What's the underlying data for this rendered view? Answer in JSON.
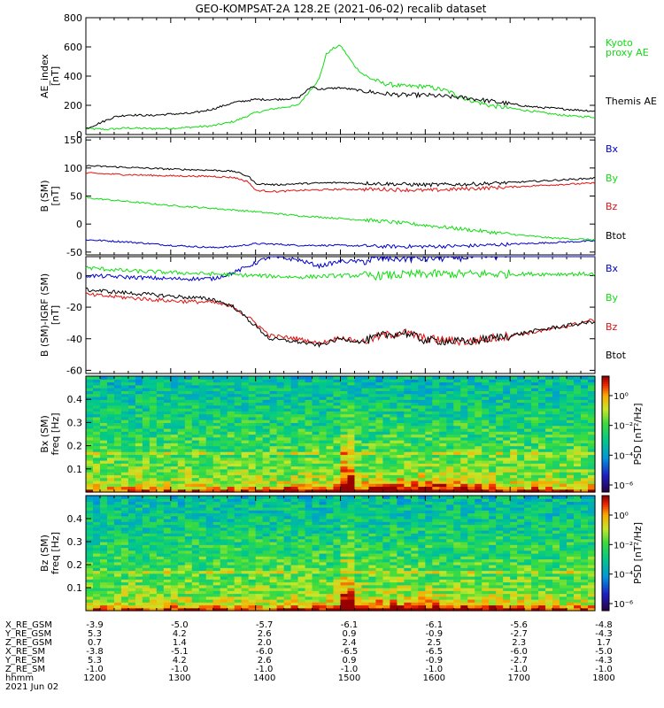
{
  "title": "GEO-KOMPSAT-2A 128.2E (2021-06-02) recalib dataset",
  "colors": {
    "black": "#000000",
    "red": "#e01010",
    "green": "#10dd10",
    "blue": "#0000cc",
    "kyoto": "#10dd10"
  },
  "chart_data": [
    {
      "type": "line",
      "panel": "ae",
      "ylabel": "AE_index [nT]",
      "ylim": [
        0,
        800
      ],
      "yticks": [
        "0",
        "200",
        "400",
        "600",
        "800"
      ],
      "x_range": [
        "1200",
        "1800"
      ],
      "series": [
        {
          "name": "Kyoto proxy AE",
          "color": "#10dd10",
          "x": [
            1200,
            1215,
            1230,
            1245,
            1300,
            1315,
            1330,
            1345,
            1400,
            1415,
            1430,
            1445,
            1450,
            1455,
            1500,
            1505,
            1510,
            1515,
            1520,
            1530,
            1545,
            1600,
            1615,
            1630,
            1645,
            1700,
            1715,
            1730,
            1745,
            1800
          ],
          "values": [
            40,
            35,
            45,
            40,
            42,
            50,
            60,
            90,
            150,
            180,
            200,
            380,
            550,
            590,
            610,
            540,
            470,
            420,
            390,
            350,
            330,
            330,
            300,
            240,
            200,
            180,
            160,
            140,
            125,
            120
          ]
        },
        {
          "name": "Themis AE",
          "color": "#000000",
          "x": [
            1200,
            1210,
            1220,
            1230,
            1245,
            1300,
            1315,
            1330,
            1345,
            1400,
            1415,
            1430,
            1440,
            1445,
            1500,
            1515,
            1530,
            1545,
            1600,
            1615,
            1630,
            1645,
            1700,
            1715,
            1730,
            1745,
            1800
          ],
          "values": [
            40,
            80,
            120,
            135,
            130,
            140,
            145,
            175,
            220,
            240,
            240,
            250,
            330,
            310,
            320,
            300,
            280,
            270,
            270,
            260,
            250,
            230,
            210,
            190,
            180,
            170,
            160
          ]
        }
      ]
    },
    {
      "type": "line",
      "panel": "bsm",
      "ylabel": "B (SM) [nT]",
      "ylim": [
        -55,
        155
      ],
      "yticks": [
        "-50",
        "0",
        "50",
        "100",
        "150"
      ],
      "series": [
        {
          "name": "Bx",
          "color": "#0000cc",
          "x": [
            1200,
            1230,
            1300,
            1330,
            1345,
            1400,
            1415,
            1430,
            1500,
            1530,
            1600,
            1630,
            1700,
            1730,
            1800
          ],
          "values": [
            -28,
            -32,
            -38,
            -42,
            -40,
            -35,
            -36,
            -38,
            -38,
            -40,
            -40,
            -39,
            -36,
            -33,
            -30
          ]
        },
        {
          "name": "By",
          "color": "#10dd10",
          "x": [
            1200,
            1230,
            1300,
            1330,
            1400,
            1430,
            1500,
            1530,
            1600,
            1630,
            1700,
            1730,
            1800
          ],
          "values": [
            47,
            40,
            33,
            28,
            22,
            15,
            10,
            5,
            -2,
            -10,
            -18,
            -25,
            -28
          ]
        },
        {
          "name": "Bz",
          "color": "#e01010",
          "x": [
            1200,
            1230,
            1300,
            1330,
            1345,
            1355,
            1400,
            1415,
            1430,
            1500,
            1530,
            1600,
            1630,
            1700,
            1730,
            1800
          ],
          "values": [
            91,
            88,
            86,
            85,
            83,
            75,
            60,
            58,
            60,
            62,
            62,
            60,
            63,
            66,
            70,
            73
          ]
        },
        {
          "name": "Btot",
          "color": "#000000",
          "x": [
            1200,
            1230,
            1300,
            1330,
            1345,
            1355,
            1400,
            1415,
            1430,
            1500,
            1530,
            1600,
            1630,
            1700,
            1730,
            1800
          ],
          "values": [
            104,
            101,
            98,
            96,
            94,
            85,
            72,
            70,
            72,
            74,
            72,
            70,
            71,
            74,
            78,
            82
          ]
        }
      ]
    },
    {
      "type": "line",
      "panel": "digrf",
      "ylabel": "B (SM)-IGRF (SM) [nT]",
      "ylim": [
        -62,
        12
      ],
      "yticks": [
        "-60",
        "-40",
        "-20",
        "0"
      ],
      "series": [
        {
          "name": "Bx",
          "color": "#0000cc",
          "x": [
            1200,
            1230,
            1300,
            1330,
            1345,
            1400,
            1410,
            1430,
            1445,
            1500,
            1515,
            1530,
            1600,
            1630,
            1700,
            1730,
            1800
          ],
          "values": [
            0,
            -1,
            -2,
            -2,
            2,
            8,
            12,
            10,
            6,
            9,
            9,
            11,
            11,
            12,
            13,
            14,
            14
          ]
        },
        {
          "name": "By",
          "color": "#10dd10",
          "x": [
            1200,
            1230,
            1300,
            1330,
            1400,
            1430,
            1500,
            1530,
            1600,
            1630,
            1700,
            1730,
            1800
          ],
          "values": [
            5,
            3,
            2,
            1,
            0,
            -1,
            0,
            0,
            1,
            1,
            1,
            1,
            1
          ]
        },
        {
          "name": "Bz",
          "color": "#e01010",
          "x": [
            1200,
            1230,
            1300,
            1330,
            1345,
            1400,
            1410,
            1430,
            1445,
            1500,
            1515,
            1530,
            1545,
            1600,
            1630,
            1700,
            1730,
            1800
          ],
          "values": [
            -12,
            -14,
            -16,
            -17,
            -20,
            -30,
            -38,
            -40,
            -43,
            -39,
            -42,
            -38,
            -36,
            -40,
            -42,
            -38,
            -34,
            -28
          ]
        },
        {
          "name": "Btot",
          "color": "#000000",
          "x": [
            1200,
            1230,
            1300,
            1330,
            1345,
            1400,
            1410,
            1430,
            1445,
            1500,
            1515,
            1530,
            1545,
            1600,
            1630,
            1700,
            1730,
            1800
          ],
          "values": [
            -9,
            -11,
            -13,
            -15,
            -20,
            -32,
            -40,
            -42,
            -44,
            -40,
            -42,
            -38,
            -36,
            -41,
            -42,
            -38,
            -33,
            -29
          ]
        }
      ]
    },
    {
      "type": "heatmap",
      "panel": "spec_bx",
      "ylabel": "Bx (SM) freq [Hz]",
      "ylim": [
        0,
        0.5
      ],
      "yticks": [
        "0.1",
        "0.2",
        "0.3",
        "0.4"
      ],
      "colorbar_label": "PSD [nT2/Hz]",
      "colorbar_ticks": [
        "10^0",
        "10^-2",
        "10^-4",
        "10^-6"
      ]
    },
    {
      "type": "heatmap",
      "panel": "spec_bz",
      "ylabel": "Bz (SM) freq [Hz]",
      "ylim": [
        0,
        0.5
      ],
      "yticks": [
        "0.1",
        "0.2",
        "0.3",
        "0.4"
      ],
      "colorbar_label": "PSD [nT2/Hz]",
      "colorbar_ticks": [
        "10^0",
        "10^-2",
        "10^-4",
        "10^-6"
      ]
    }
  ],
  "panels": {
    "ae": {
      "ylabel_line1": "AE_index",
      "ylabel_line2": "[nT]",
      "legend": [
        {
          "text": "Kyoto",
          "color": "#10dd10"
        },
        {
          "text": "proxy AE",
          "color": "#10dd10"
        },
        {
          "text": "Themis AE",
          "color": "#000000"
        }
      ]
    },
    "bsm": {
      "ylabel_line1": "B (SM)",
      "ylabel_line2": "[nT]",
      "legend": [
        {
          "text": "Bx",
          "color": "#0000cc"
        },
        {
          "text": "By",
          "color": "#10dd10"
        },
        {
          "text": "Bz",
          "color": "#e01010"
        },
        {
          "text": "Btot",
          "color": "#000000"
        }
      ]
    },
    "digrf": {
      "ylabel_line1": "B (SM)-IGRF (SM)",
      "ylabel_line2": "[nT]",
      "legend": [
        {
          "text": "Bx",
          "color": "#0000cc"
        },
        {
          "text": "By",
          "color": "#10dd10"
        },
        {
          "text": "Bz",
          "color": "#e01010"
        },
        {
          "text": "Btot",
          "color": "#000000"
        }
      ]
    },
    "spec_bx": {
      "ylabel_line1": "Bx (SM)",
      "ylabel_line2": "freq [Hz]"
    },
    "spec_bz": {
      "ylabel_line1": "Bz (SM)",
      "ylabel_line2": "freq [Hz]"
    }
  },
  "colorbar": {
    "label": "PSD [nT²/Hz]",
    "ticks": [
      "10⁰",
      "10⁻²",
      "10⁻⁴",
      "10⁻⁶"
    ]
  },
  "ephemeris": {
    "rows": [
      {
        "label": "X_RE_GSM",
        "values": [
          "-3.9",
          "-5.0",
          "-5.7",
          "-6.1",
          "-6.1",
          "-5.6",
          "-4.8"
        ]
      },
      {
        "label": "Y_RE_GSM",
        "values": [
          "5.3",
          "4.2",
          "2.6",
          "0.9",
          "-0.9",
          "-2.7",
          "-4.3"
        ]
      },
      {
        "label": "Z_RE_GSM",
        "values": [
          "0.7",
          "1.4",
          "2.0",
          "2.4",
          "2.5",
          "2.3",
          "1.7"
        ]
      },
      {
        "label": "X_RE_SM",
        "values": [
          "-3.8",
          "-5.1",
          "-6.0",
          "-6.5",
          "-6.5",
          "-6.0",
          "-5.0"
        ]
      },
      {
        "label": "Y_RE_SM",
        "values": [
          "5.3",
          "4.2",
          "2.6",
          "0.9",
          "-0.9",
          "-2.7",
          "-4.3"
        ]
      },
      {
        "label": "Z_RE_SM",
        "values": [
          "-1.0",
          "-1.0",
          "-1.0",
          "-1.0",
          "-1.0",
          "-1.0",
          "-1.0"
        ]
      },
      {
        "label": "hhmm",
        "values": [
          "1200",
          "1300",
          "1400",
          "1500",
          "1600",
          "1700",
          "1800"
        ]
      }
    ],
    "date": "2021 Jun 02"
  }
}
